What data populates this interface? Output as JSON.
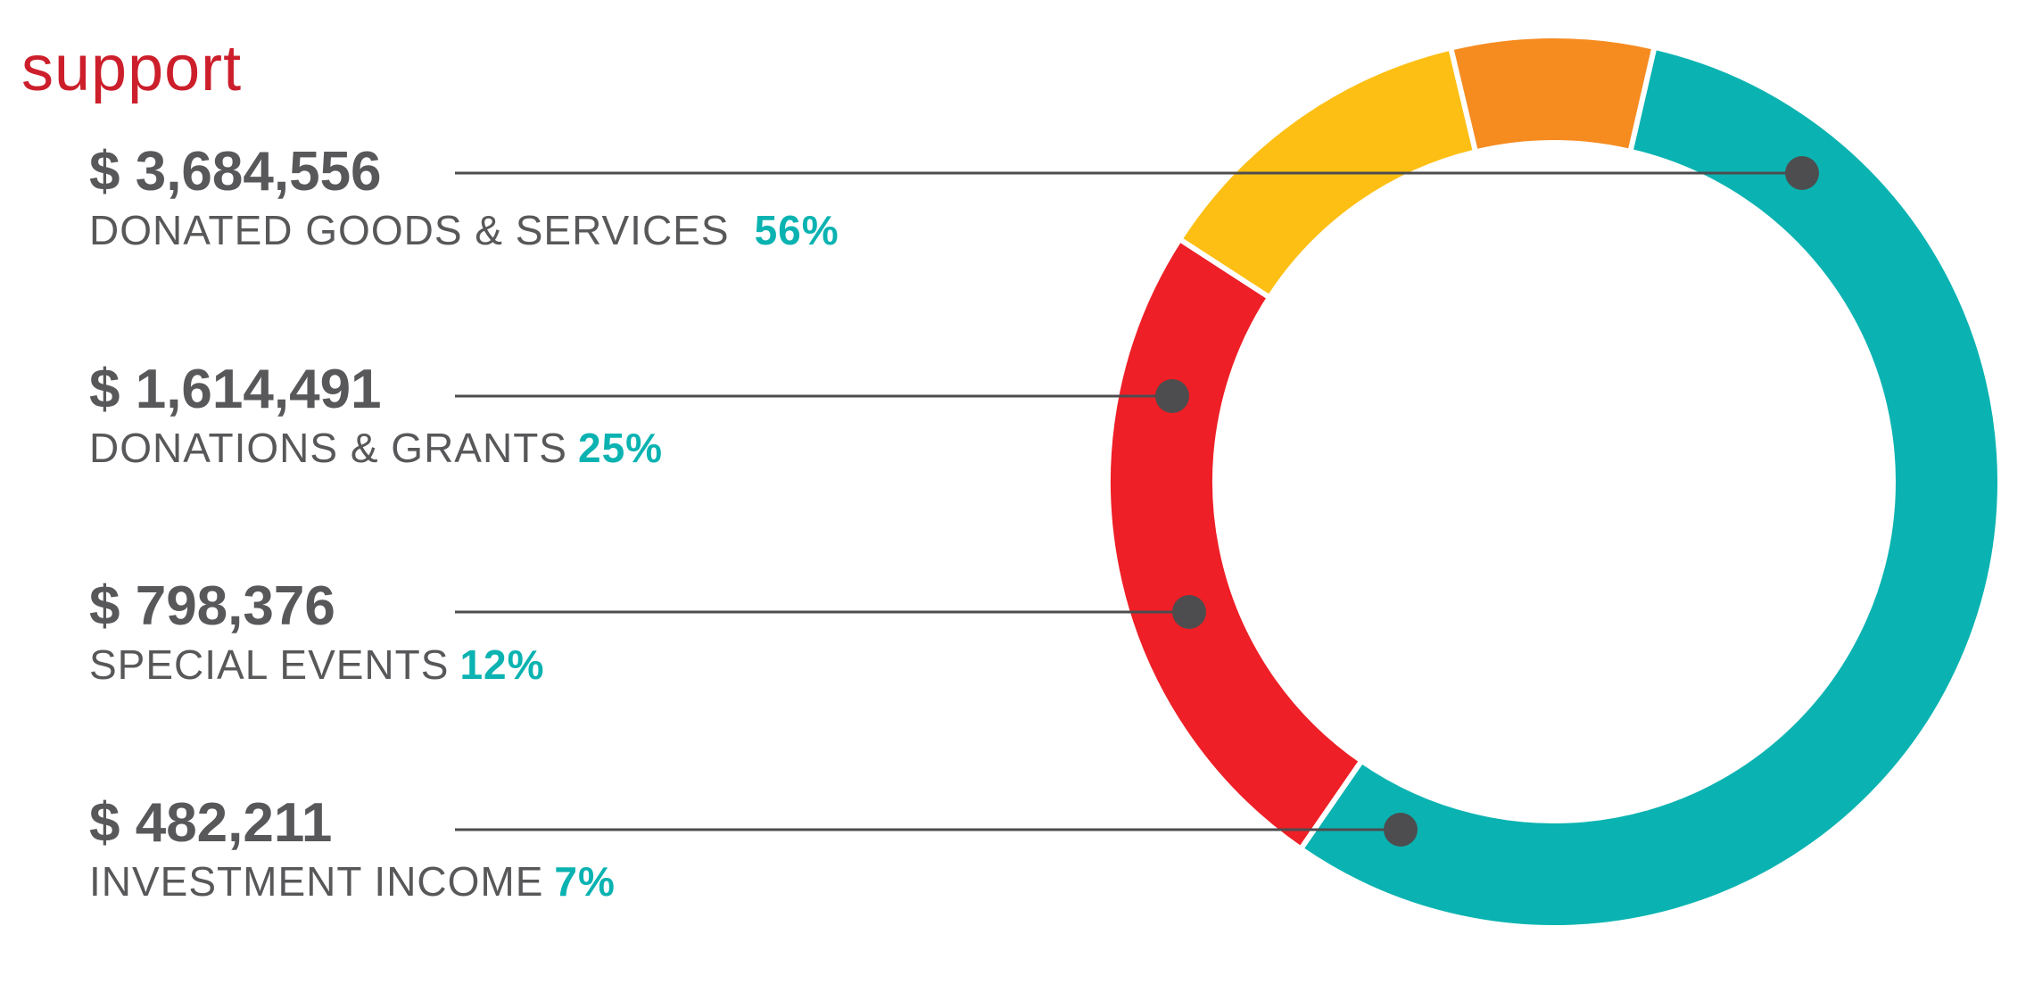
{
  "title": "support",
  "chart_data": {
    "type": "pie",
    "style": "donut",
    "title": "support",
    "slices": [
      {
        "label": "DONATED GOODS & SERVICES",
        "amount": "$ 3,684,556",
        "value": 3684556,
        "percent": "56%",
        "color": "#0ab3b1"
      },
      {
        "label": "DONATIONS & GRANTS",
        "amount": "$ 1,614,491",
        "value": 1614491,
        "percent": "25%",
        "color": "#ee1f26"
      },
      {
        "label": "SPECIAL EVENTS",
        "amount": "$ 798,376",
        "value": 798376,
        "percent": "12%",
        "color": "#fdbf13"
      },
      {
        "label": "INVESTMENT INCOME",
        "amount": "$ 482,211",
        "value": 482211,
        "percent": "7%",
        "color": "#f68b20"
      }
    ],
    "legend_position": "left",
    "colors": {
      "text": "#58585a",
      "percent": "#0ab3b1",
      "title": "#cc1f2b",
      "connector": "#4d4d4f"
    }
  }
}
